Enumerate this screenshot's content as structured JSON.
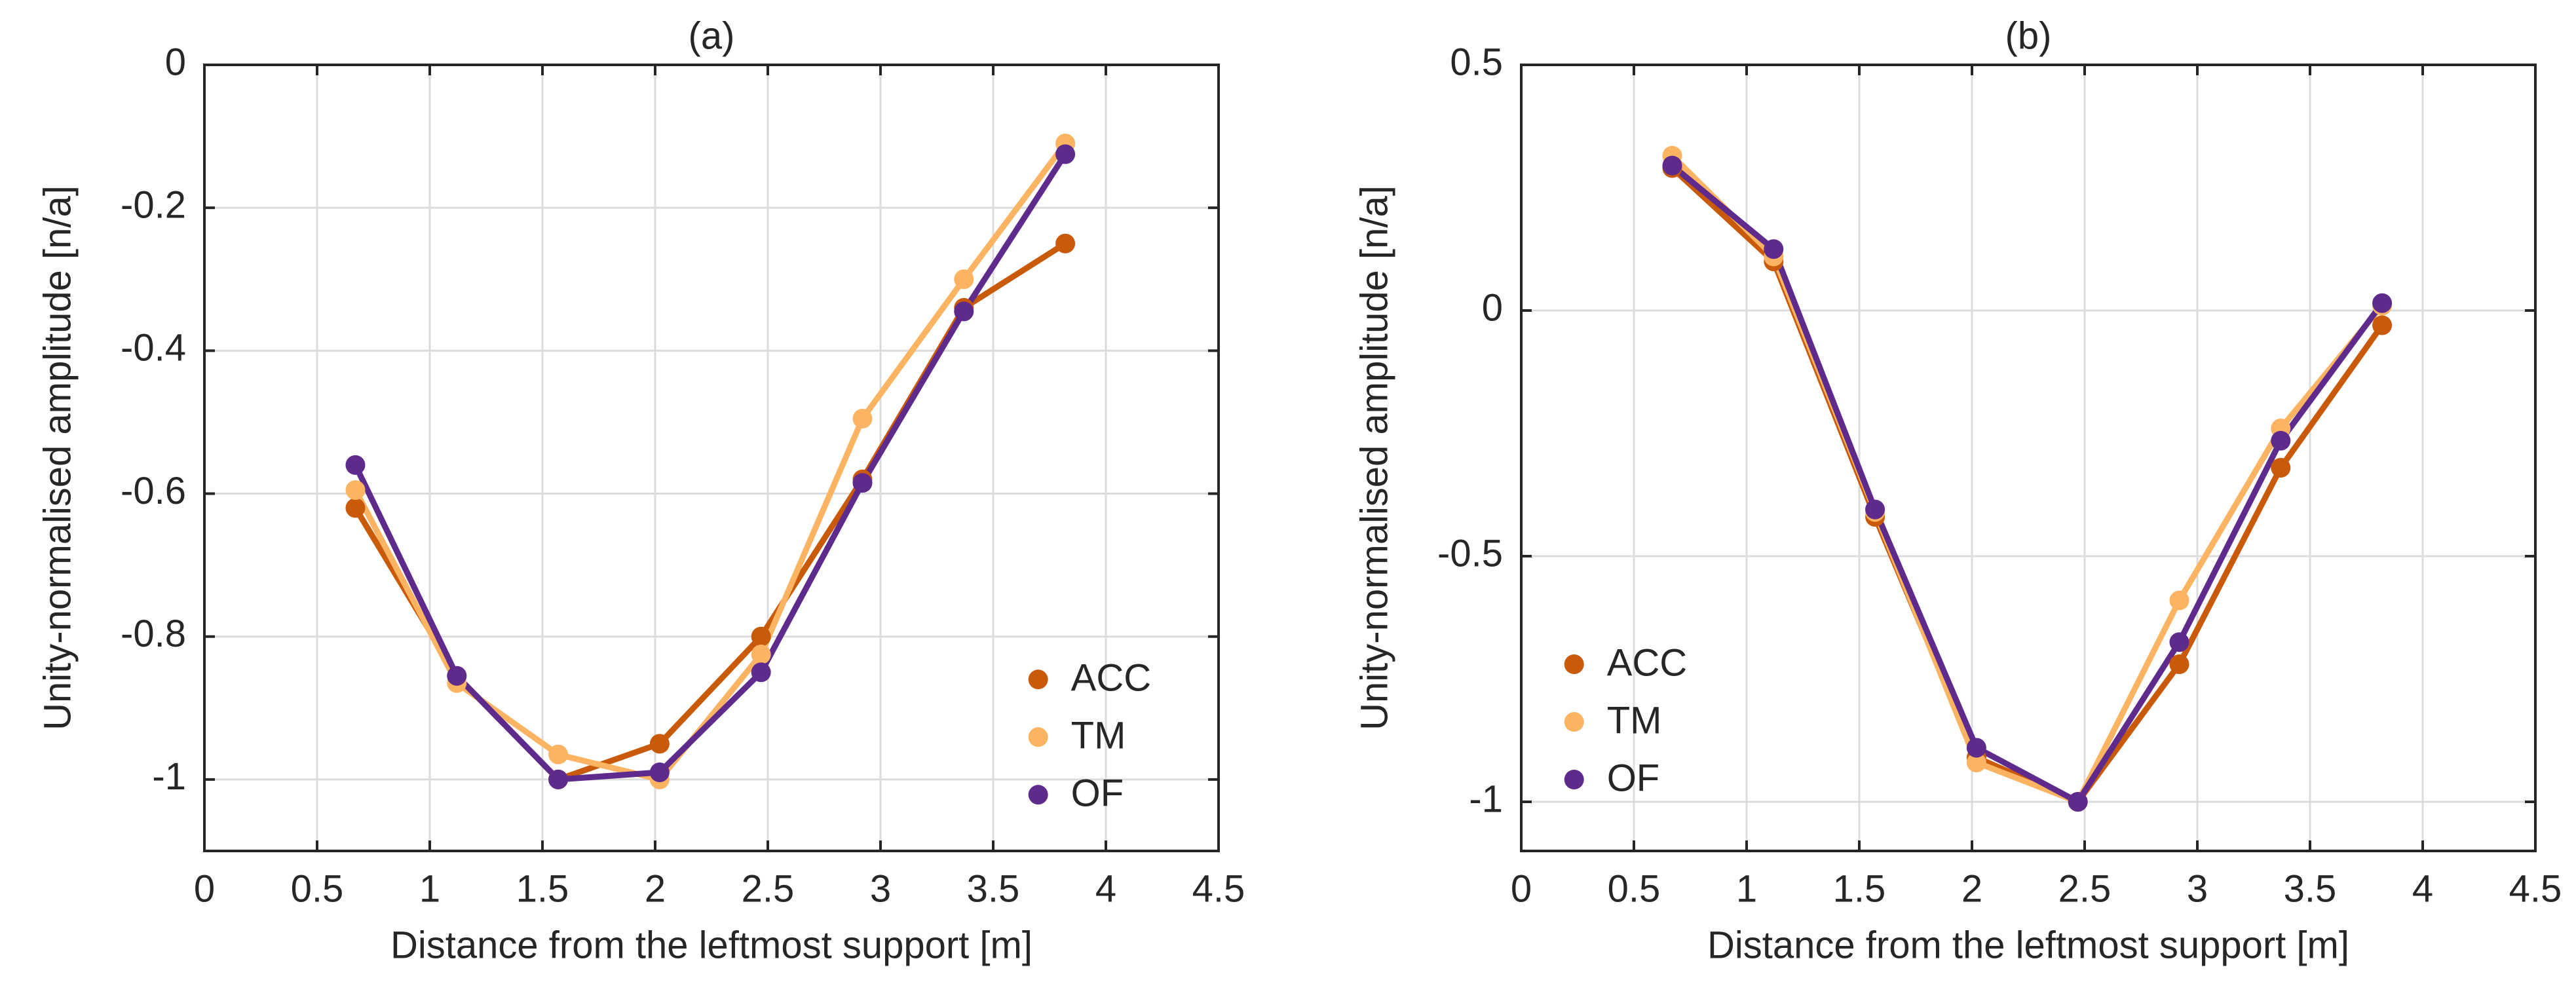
{
  "chart_data": [
    {
      "type": "line",
      "title": "(a)",
      "xlabel": "Distance from the leftmost support [m]",
      "ylabel": "Unity-normalised amplitude [n/a]",
      "xlim": [
        0,
        4.5
      ],
      "ylim": [
        -1.1,
        0
      ],
      "xticks": [
        0,
        0.5,
        1,
        1.5,
        2,
        2.5,
        3,
        3.5,
        4,
        4.5
      ],
      "yticks": [
        -1,
        -0.8,
        -0.6,
        -0.4,
        -0.2,
        0
      ],
      "xtick_labels": [
        "0",
        "0.5",
        "1",
        "1.5",
        "2",
        "2.5",
        "3",
        "3.5",
        "4",
        "4.5"
      ],
      "ytick_labels": [
        "-1",
        "-0.8",
        "-0.6",
        "-0.4",
        "-0.2",
        "0"
      ],
      "grid": true,
      "legend_position": "bottom-right",
      "x": [
        0.67,
        1.12,
        1.57,
        2.02,
        2.47,
        2.92,
        3.37,
        3.82
      ],
      "series": [
        {
          "name": "ACC",
          "color": "#C85A0A",
          "values": [
            -0.62,
            -0.855,
            -1.0,
            -0.95,
            -0.8,
            -0.58,
            -0.34,
            -0.25
          ]
        },
        {
          "name": "TM",
          "color": "#FDB462",
          "values": [
            -0.595,
            -0.865,
            -0.965,
            -1.0,
            -0.825,
            -0.495,
            -0.3,
            -0.11
          ]
        },
        {
          "name": "OF",
          "color": "#5E2A8C",
          "values": [
            -0.56,
            -0.855,
            -1.0,
            -0.99,
            -0.85,
            -0.585,
            -0.345,
            -0.125
          ]
        }
      ]
    },
    {
      "type": "line",
      "title": "(b)",
      "xlabel": "Distance from the leftmost support [m]",
      "ylabel": "Unity-normalised amplitude [n/a]",
      "xlim": [
        0,
        4.5
      ],
      "ylim": [
        -1.1,
        0.5
      ],
      "xticks": [
        0,
        0.5,
        1,
        1.5,
        2,
        2.5,
        3,
        3.5,
        4,
        4.5
      ],
      "yticks": [
        -1,
        -0.5,
        0,
        0.5
      ],
      "xtick_labels": [
        "0",
        "0.5",
        "1",
        "1.5",
        "2",
        "2.5",
        "3",
        "3.5",
        "4",
        "4.5"
      ],
      "ytick_labels": [
        "-1",
        "-0.5",
        "0",
        "0.5"
      ],
      "grid": true,
      "legend_position": "bottom-left",
      "x": [
        0.67,
        1.12,
        1.57,
        2.02,
        2.47,
        2.92,
        3.37,
        3.82
      ],
      "series": [
        {
          "name": "ACC",
          "color": "#C85A0A",
          "values": [
            0.29,
            0.1,
            -0.42,
            -0.91,
            -1.0,
            -0.72,
            -0.32,
            -0.03
          ]
        },
        {
          "name": "TM",
          "color": "#FDB462",
          "values": [
            0.315,
            0.11,
            -0.41,
            -0.92,
            -1.0,
            -0.59,
            -0.24,
            0.01
          ]
        },
        {
          "name": "OF",
          "color": "#5E2A8C",
          "values": [
            0.295,
            0.125,
            -0.405,
            -0.89,
            -1.0,
            -0.675,
            -0.265,
            0.015
          ]
        }
      ]
    }
  ]
}
